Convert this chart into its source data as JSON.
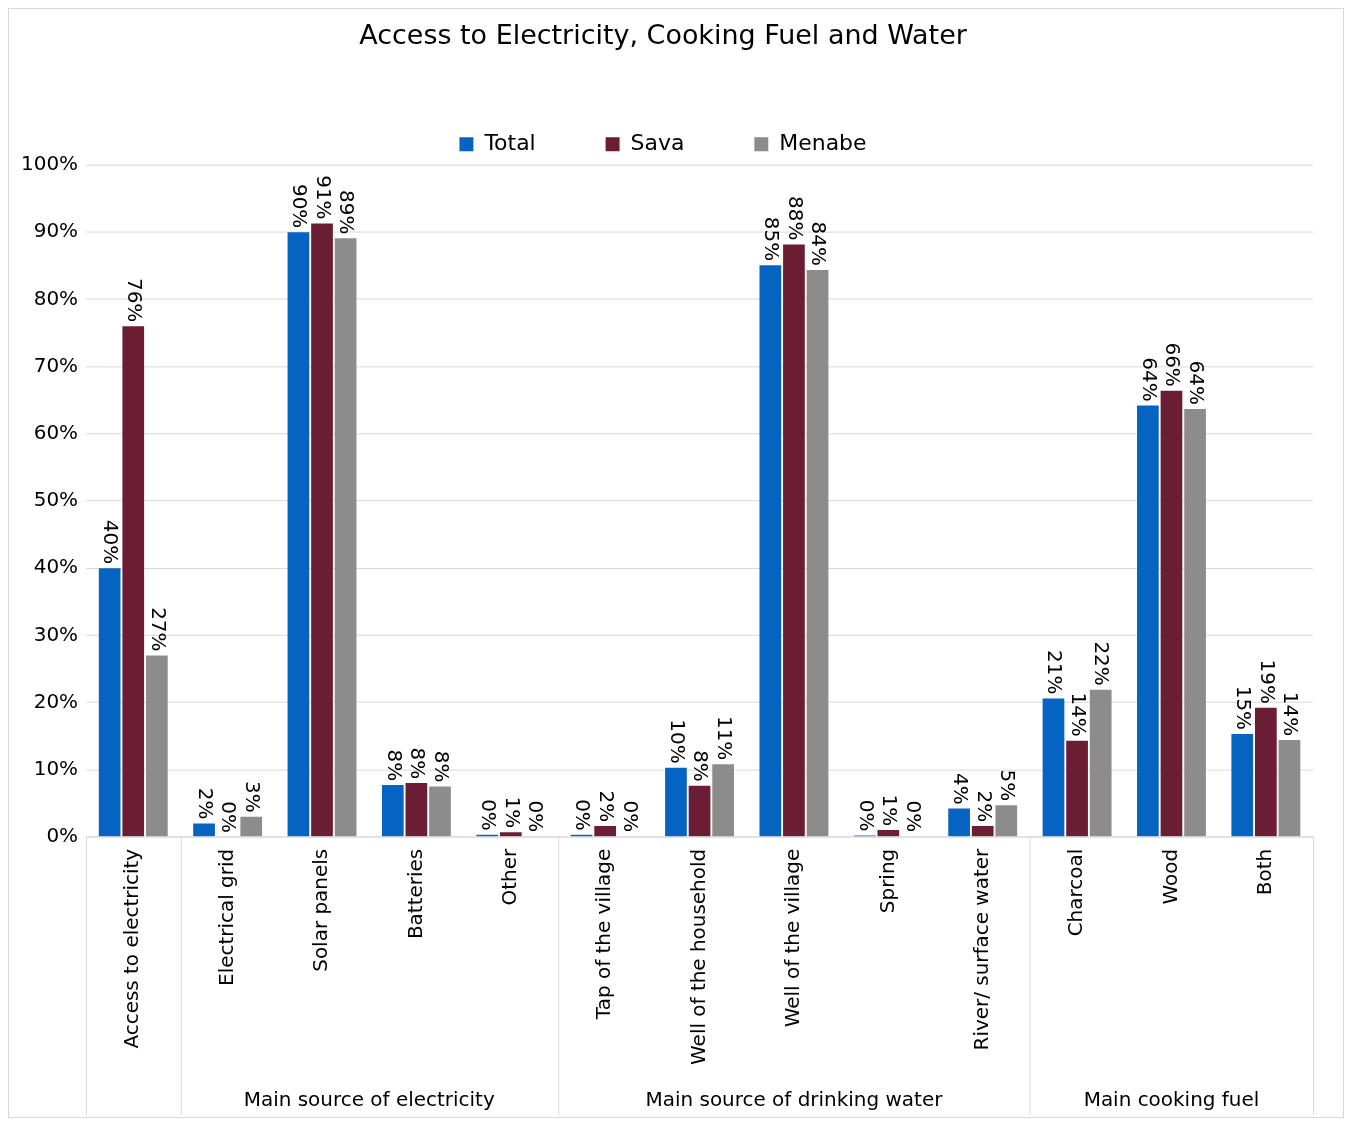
{
  "chart_data": {
    "type": "bar",
    "title": "Access to Electricity, Cooking Fuel and Water",
    "categories": [
      "Access to electricity",
      "Electrical grid",
      "Solar panels",
      "Batteries",
      "Other",
      "Tap of the village",
      "Well of the household",
      "Well of the village",
      "Spring",
      "River/ surface water",
      "Charcoal",
      "Wood",
      "Both"
    ],
    "series": [
      {
        "name": "Total",
        "color": "#0563c1",
        "values": [
          40,
          2,
          90,
          7.7,
          0.3,
          0.3,
          10.3,
          85.1,
          0.2,
          4.2,
          20.6,
          64.2,
          15.3
        ],
        "value_labels": [
          "40%",
          "2%",
          "90%",
          "8%",
          "0%",
          "0%",
          "10%",
          "85%",
          "0%",
          "4%",
          "21%",
          "64%",
          "15%"
        ]
      },
      {
        "name": "Sava",
        "color": "#6b1d33",
        "values": [
          76,
          0,
          91.3,
          8,
          0.7,
          1.6,
          7.6,
          88.2,
          1,
          1.6,
          14.3,
          66.4,
          19.2
        ],
        "value_labels": [
          "76%",
          "0%",
          "91%",
          "8%",
          "1%",
          "2%",
          "8%",
          "88%",
          "1%",
          "2%",
          "14%",
          "66%",
          "19%"
        ]
      },
      {
        "name": "Menabe",
        "color": "#8c8c8c",
        "values": [
          27,
          3,
          89.1,
          7.5,
          0.1,
          0.1,
          10.8,
          84.4,
          0.1,
          4.7,
          21.9,
          63.7,
          14.4
        ],
        "value_labels": [
          "27%",
          "3%",
          "89%",
          "8%",
          "0%",
          "0%",
          "11%",
          "84%",
          "0%",
          "5%",
          "22%",
          "64%",
          "14%"
        ]
      }
    ],
    "annotations": [
      "Main source of electricity",
      "Main source of drinking water",
      "Main cooking fuel"
    ],
    "ylim": [
      0,
      100
    ],
    "yticks": [
      {
        "value": 0,
        "label": "0%"
      },
      {
        "value": 10,
        "label": "10%"
      },
      {
        "value": 20,
        "label": "20%"
      },
      {
        "value": 30,
        "label": "30%"
      },
      {
        "value": 40,
        "label": "40%"
      },
      {
        "value": 50,
        "label": "50%"
      },
      {
        "value": 60,
        "label": "60%"
      },
      {
        "value": 70,
        "label": "70%"
      },
      {
        "value": 80,
        "label": "80%"
      },
      {
        "value": 90,
        "label": "90%"
      },
      {
        "value": 100,
        "label": "100%"
      }
    ],
    "grid": "y",
    "legend": "top"
  }
}
